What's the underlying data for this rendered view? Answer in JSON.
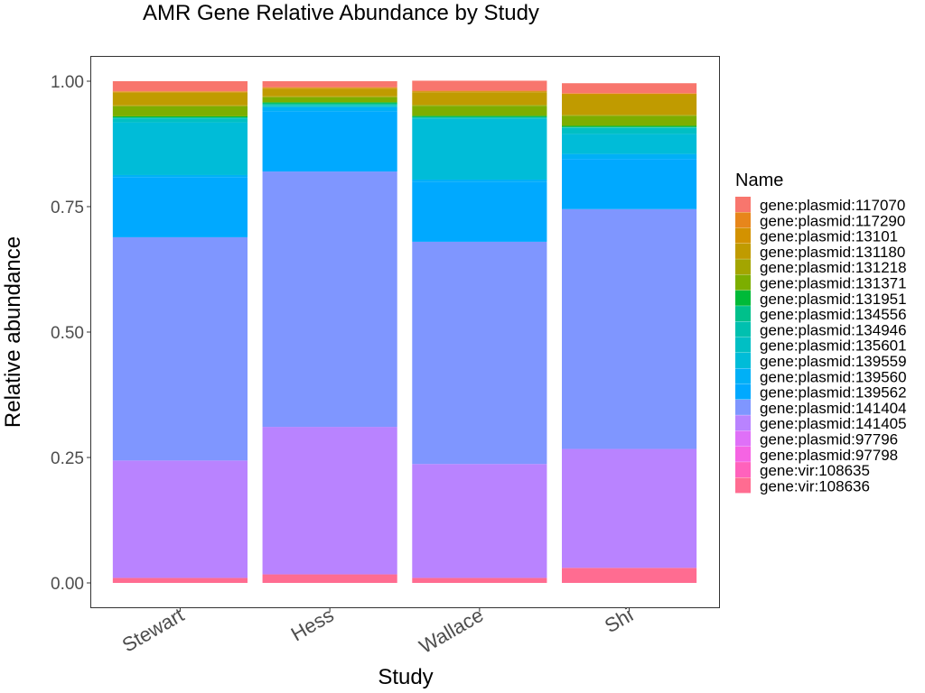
{
  "chart_data": {
    "type": "bar",
    "stacked": true,
    "title": "AMR Gene Relative Abundance by Study",
    "xlabel": "Study",
    "ylabel": "Relative abundance",
    "ylim": [
      0,
      1
    ],
    "yticks": [
      "0.00",
      "0.25",
      "0.50",
      "0.75",
      "1.00"
    ],
    "ytick_values": [
      0,
      0.25,
      0.5,
      0.75,
      1.0
    ],
    "grid": false,
    "legend_title": "Name",
    "legend_position": "right",
    "categories": [
      "Stewart",
      "Hess",
      "Wallace",
      "Shi"
    ],
    "series": [
      {
        "name": "gene:vir:108636",
        "color": "#FF6C91",
        "values": [
          0.01,
          0.017,
          0.01,
          0.03
        ]
      },
      {
        "name": "gene:vir:108635",
        "color": "#FF62BC",
        "values": [
          0.0,
          0.0,
          0.0,
          0.0
        ]
      },
      {
        "name": "gene:plasmid:97798",
        "color": "#F564E3",
        "values": [
          0.0,
          0.0,
          0.0,
          0.0
        ]
      },
      {
        "name": "gene:plasmid:97796",
        "color": "#DF70F8",
        "values": [
          0.0,
          0.0,
          0.0,
          0.0
        ]
      },
      {
        "name": "gene:plasmid:141405",
        "color": "#B983FF",
        "values": [
          0.234,
          0.294,
          0.227,
          0.237
        ]
      },
      {
        "name": "gene:plasmid:141404",
        "color": "#7F96FF",
        "values": [
          0.445,
          0.509,
          0.443,
          0.478
        ]
      },
      {
        "name": "gene:plasmid:139562",
        "color": "#00A9FF",
        "values": [
          0.12,
          0.12,
          0.12,
          0.1
        ]
      },
      {
        "name": "gene:plasmid:139560",
        "color": "#00B0F6",
        "values": [
          0.004,
          0.008,
          0.004,
          0.01
        ]
      },
      {
        "name": "gene:plasmid:139559",
        "color": "#00BCD8",
        "values": [
          0.105,
          0.002,
          0.121,
          0.04
        ]
      },
      {
        "name": "gene:plasmid:135601",
        "color": "#00BFC4",
        "values": [
          0.008,
          0.002,
          0.002,
          0.012
        ]
      },
      {
        "name": "gene:plasmid:134946",
        "color": "#00C0AF",
        "values": [
          0.001,
          0.002,
          0.001,
          0.001
        ]
      },
      {
        "name": "gene:plasmid:134556",
        "color": "#00C08B",
        "values": [
          0.001,
          0.002,
          0.001,
          0.001
        ]
      },
      {
        "name": "gene:plasmid:131951",
        "color": "#00BA38",
        "values": [
          0.002,
          0.002,
          0.002,
          0.002
        ]
      },
      {
        "name": "gene:plasmid:131371",
        "color": "#7CAE00",
        "values": [
          0.02,
          0.01,
          0.02,
          0.02
        ]
      },
      {
        "name": "gene:plasmid:131218",
        "color": "#A3A500",
        "values": [
          0.002,
          0.002,
          0.002,
          0.002
        ]
      },
      {
        "name": "gene:plasmid:131180",
        "color": "#C09B00",
        "values": [
          0.025,
          0.015,
          0.025,
          0.04
        ]
      },
      {
        "name": "gene:plasmid:13101",
        "color": "#D39200",
        "values": [
          0.002,
          0.002,
          0.002,
          0.002
        ]
      },
      {
        "name": "gene:plasmid:117290",
        "color": "#E7861B",
        "values": [
          0.001,
          0.001,
          0.001,
          0.001
        ]
      },
      {
        "name": "gene:plasmid:117070",
        "color": "#F8766D",
        "values": [
          0.02,
          0.012,
          0.02,
          0.02
        ]
      }
    ],
    "legend_order": [
      "gene:plasmid:117070",
      "gene:plasmid:117290",
      "gene:plasmid:13101",
      "gene:plasmid:131180",
      "gene:plasmid:131218",
      "gene:plasmid:131371",
      "gene:plasmid:131951",
      "gene:plasmid:134556",
      "gene:plasmid:134946",
      "gene:plasmid:135601",
      "gene:plasmid:139559",
      "gene:plasmid:139560",
      "gene:plasmid:139562",
      "gene:plasmid:141404",
      "gene:plasmid:141405",
      "gene:plasmid:97796",
      "gene:plasmid:97798",
      "gene:vir:108635",
      "gene:vir:108636"
    ]
  }
}
